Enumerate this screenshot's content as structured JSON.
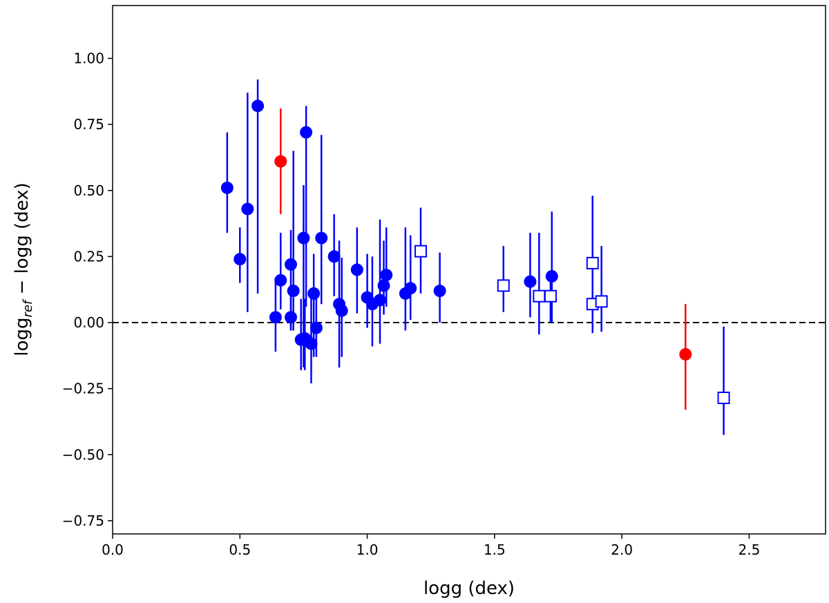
{
  "chart_data": {
    "type": "scatter",
    "xlabel": "logg (dex)",
    "ylabel": {
      "main": "logg",
      "sub": "ref",
      "rest": " − logg (dex)"
    },
    "xlim": [
      0.0,
      2.8
    ],
    "ylim": [
      -0.8,
      1.2
    ],
    "xticks": [
      "0.0",
      "0.5",
      "1.0",
      "1.5",
      "2.0",
      "2.5"
    ],
    "xtick_values": [
      0.0,
      0.5,
      1.0,
      1.5,
      2.0,
      2.5
    ],
    "yticks": [
      "1.00",
      "0.75",
      "0.50",
      "0.25",
      "0.00",
      "−0.25",
      "−0.50",
      "−0.75"
    ],
    "ytick_values": [
      1.0,
      0.75,
      0.5,
      0.25,
      0.0,
      -0.25,
      -0.5,
      -0.75
    ],
    "grid": false,
    "reference_line": {
      "y": 0.0,
      "style": "dashed",
      "color": "#000000"
    },
    "colors": {
      "blue": "#0000ff",
      "red": "#ff0000"
    },
    "point_fields": [
      "x",
      "y",
      "yerr_minus",
      "yerr_plus"
    ],
    "series": [
      {
        "marker": "filled-circle",
        "color": "#0000ff",
        "points": [
          [
            0.45,
            0.51,
            0.17,
            0.21
          ],
          [
            0.5,
            0.24,
            0.09,
            0.12
          ],
          [
            0.53,
            0.43,
            0.39,
            0.44
          ],
          [
            0.57,
            0.82,
            0.71,
            0.1
          ],
          [
            0.64,
            0.02,
            0.13,
            0.15
          ],
          [
            0.66,
            0.16,
            0.11,
            0.18
          ],
          [
            0.7,
            0.22,
            0.25,
            0.13
          ],
          [
            0.7,
            0.02,
            0.05,
            0.1
          ],
          [
            0.71,
            0.12,
            0.15,
            0.53
          ],
          [
            0.74,
            -0.065,
            0.115,
            0.155
          ],
          [
            0.75,
            0.32,
            0.49,
            0.2
          ],
          [
            0.76,
            0.72,
            0.66,
            0.1
          ],
          [
            0.755,
            -0.06,
            0.12,
            0.15
          ],
          [
            0.78,
            -0.08,
            0.15,
            0.18
          ],
          [
            0.79,
            0.11,
            0.24,
            0.15
          ],
          [
            0.8,
            -0.02,
            0.11,
            0.12
          ],
          [
            0.82,
            0.32,
            0.25,
            0.39
          ],
          [
            0.87,
            0.25,
            0.15,
            0.16
          ],
          [
            0.89,
            0.07,
            0.24,
            0.24
          ],
          [
            0.9,
            0.045,
            0.175,
            0.2
          ],
          [
            0.96,
            0.2,
            0.165,
            0.16
          ],
          [
            1.0,
            0.095,
            0.115,
            0.165
          ],
          [
            1.02,
            0.07,
            0.16,
            0.18
          ],
          [
            1.05,
            0.085,
            0.165,
            0.305
          ],
          [
            1.065,
            0.14,
            0.11,
            0.17
          ],
          [
            1.075,
            0.18,
            0.12,
            0.18
          ],
          [
            1.15,
            0.11,
            0.14,
            0.25
          ],
          [
            1.17,
            0.13,
            0.12,
            0.2
          ],
          [
            1.285,
            0.12,
            0.12,
            0.145
          ],
          [
            1.64,
            0.155,
            0.135,
            0.185
          ],
          [
            1.725,
            0.175,
            0.175,
            0.245
          ]
        ]
      },
      {
        "marker": "filled-circle",
        "color": "#ff0000",
        "points": [
          [
            0.66,
            0.61,
            0.2,
            0.2
          ],
          [
            2.25,
            -0.12,
            0.21,
            0.19
          ]
        ]
      },
      {
        "marker": "open-square",
        "color": "#0000ff",
        "points": [
          [
            1.21,
            0.27,
            0.16,
            0.165
          ],
          [
            1.535,
            0.14,
            0.1,
            0.15
          ],
          [
            1.675,
            0.1,
            0.145,
            0.24
          ],
          [
            1.72,
            0.1,
            0.1,
            0.07
          ],
          [
            1.885,
            0.225,
            0.13,
            0.255
          ],
          [
            1.885,
            0.07,
            0.11,
            0.11
          ],
          [
            1.92,
            0.08,
            0.115,
            0.21
          ],
          [
            2.4,
            -0.285,
            0.14,
            0.27
          ]
        ]
      }
    ]
  }
}
